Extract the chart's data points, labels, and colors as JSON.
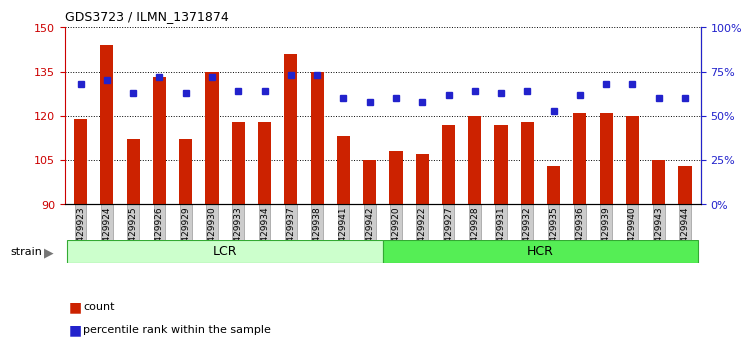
{
  "title": "GDS3723 / ILMN_1371874",
  "samples": [
    "GSM429923",
    "GSM429924",
    "GSM429925",
    "GSM429926",
    "GSM429929",
    "GSM429930",
    "GSM429933",
    "GSM429934",
    "GSM429937",
    "GSM429938",
    "GSM429941",
    "GSM429942",
    "GSM429920",
    "GSM429922",
    "GSM429927",
    "GSM429928",
    "GSM429931",
    "GSM429932",
    "GSM429935",
    "GSM429936",
    "GSM429939",
    "GSM429940",
    "GSM429943",
    "GSM429944"
  ],
  "bar_values": [
    119,
    144,
    112,
    133,
    112,
    135,
    118,
    118,
    141,
    135,
    113,
    105,
    108,
    107,
    117,
    120,
    117,
    118,
    103,
    121,
    121,
    120,
    105,
    103
  ],
  "dot_values": [
    68,
    70,
    63,
    72,
    63,
    72,
    64,
    64,
    73,
    73,
    60,
    58,
    60,
    58,
    62,
    64,
    63,
    64,
    53,
    62,
    68,
    68,
    60,
    60
  ],
  "bar_color": "#cc2200",
  "dot_color": "#2222cc",
  "ylim_left": [
    90,
    150
  ],
  "ylim_right": [
    0,
    100
  ],
  "yticks_left": [
    90,
    105,
    120,
    135,
    150
  ],
  "yticks_right": [
    0,
    25,
    50,
    75,
    100
  ],
  "ytick_labels_right": [
    "0%",
    "25%",
    "50%",
    "75%",
    "100%"
  ],
  "lcr_count": 12,
  "hcr_count": 12,
  "lcr_label": "LCR",
  "hcr_label": "HCR",
  "strain_label": "strain",
  "legend_count": "count",
  "legend_pct": "percentile rank within the sample",
  "bar_bottom": 90,
  "lcr_color": "#ccffcc",
  "hcr_color": "#55ee55",
  "border_color": "#33aa33",
  "strain_arrow_color": "#777777"
}
